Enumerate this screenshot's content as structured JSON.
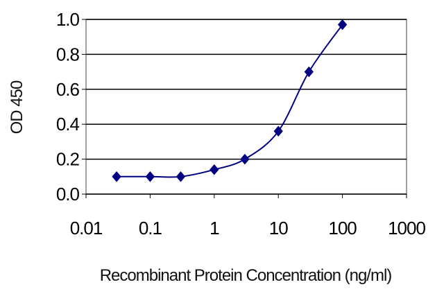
{
  "chart_data": {
    "type": "line",
    "xscale": "log",
    "x_ticks": [
      "0.01",
      "0.1",
      "1",
      "10",
      "100",
      "1000"
    ],
    "y_ticks": [
      "0.0",
      "0.2",
      "0.4",
      "0.6",
      "0.8",
      "1.0"
    ],
    "xlim": [
      0.01,
      1000
    ],
    "ylim": [
      0,
      1.0
    ],
    "xlabel": "Recombinant Protein Concentration (ng/ml)",
    "ylabel": "OD 450",
    "grid": "horizontal",
    "legend": "none",
    "series": [
      {
        "x": [
          0.03,
          0.1,
          0.3,
          1,
          3,
          10,
          30,
          100
        ],
        "y": [
          0.1,
          0.1,
          0.1,
          0.14,
          0.2,
          0.36,
          0.7,
          0.97
        ],
        "color": "#000080",
        "marker": "diamond"
      }
    ]
  }
}
